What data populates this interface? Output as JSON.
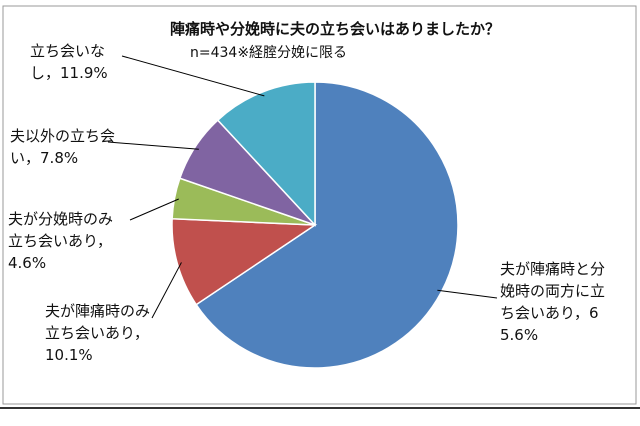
{
  "chart_data": {
    "type": "pie",
    "title": "陣痛時や分娩時に夫の立ち会いはありましたか？",
    "subtitle": "n=434※経腟分娩に限る",
    "categories": [
      "夫が陣痛時と分娩時の両方に立ち会いあり，",
      "夫が陣痛時のみ立ち会いあり，",
      "夫が分娩時のみ立ち会いあり，",
      "夫以外の立ち会い，",
      "立ち会いなし，"
    ],
    "values": [
      65.6,
      10.1,
      4.6,
      7.8,
      11.9
    ],
    "value_labels": [
      "65.6%",
      "10.1%",
      "4.6%",
      "7.8%",
      "11.9%"
    ],
    "colors": [
      "#4f81bd",
      "#c0504d",
      "#9bbb59",
      "#8064a2",
      "#4bacc6"
    ]
  }
}
